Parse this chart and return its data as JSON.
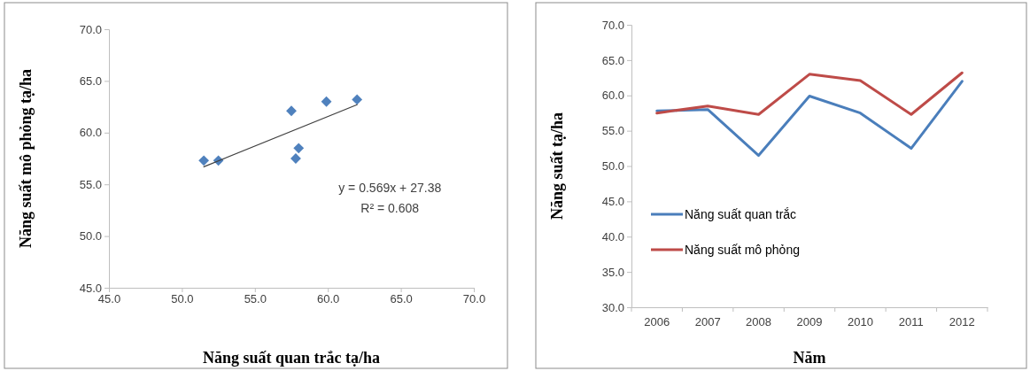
{
  "chart_data": [
    {
      "type": "scatter",
      "xlabel": "Năng suất quan trắc tạ/ha",
      "ylabel": "Năng suất mô phỏng tạ/ha",
      "xlim": [
        45,
        70
      ],
      "xticks": [
        {
          "value": 45,
          "label": "45.0"
        },
        {
          "value": 50,
          "label": "50.0"
        },
        {
          "value": 55,
          "label": "55.0"
        },
        {
          "value": 60,
          "label": "60.0"
        },
        {
          "value": 65,
          "label": "65.0"
        },
        {
          "value": 70,
          "label": "70.0"
        }
      ],
      "ylim": [
        45,
        70
      ],
      "yticks": [
        {
          "value": 45,
          "label": "45.0"
        },
        {
          "value": 50,
          "label": "50.0"
        },
        {
          "value": 55,
          "label": "55.0"
        },
        {
          "value": 60,
          "label": "60.0"
        },
        {
          "value": 65,
          "label": "65.0"
        },
        {
          "value": 70,
          "label": "70.0"
        }
      ],
      "marker": "diamond",
      "legend": false,
      "grid": false,
      "series": [
        {
          "type": "scatter",
          "color": "#4f81bd",
          "x": [
            57.8,
            58.0,
            51.5,
            59.9,
            57.5,
            52.5,
            62.0
          ],
          "values": [
            57.5,
            58.5,
            57.3,
            63.0,
            62.1,
            57.3,
            63.2
          ]
        },
        {
          "type": "line",
          "color": "#404040",
          "marker": "none",
          "x": [
            51.5,
            62.0
          ],
          "values": [
            56.7,
            62.7
          ]
        }
      ],
      "annotations": [
        "y = 0.569x + 27.38",
        "R² = 0.608"
      ]
    },
    {
      "type": "line",
      "xlabel": "Năm",
      "ylabel": "Năng suất tạ/ha",
      "categories": [
        "2006",
        "2007",
        "2008",
        "2009",
        "2010",
        "2011",
        "2012"
      ],
      "ylim": [
        30,
        70
      ],
      "yticks": [
        {
          "value": 30,
          "label": "30.0"
        },
        {
          "value": 35,
          "label": "35.0"
        },
        {
          "value": 40,
          "label": "40.0"
        },
        {
          "value": 45,
          "label": "45.0"
        },
        {
          "value": 50,
          "label": "50.0"
        },
        {
          "value": 55,
          "label": "55.0"
        },
        {
          "value": 60,
          "label": "60.0"
        },
        {
          "value": 65,
          "label": "65.0"
        },
        {
          "value": 70,
          "label": "70.0"
        }
      ],
      "marker": "none",
      "legend": "bottom left",
      "grid": false,
      "series": [
        {
          "name": "Năng suất quan trắc",
          "color": "#4a7ebb",
          "values": [
            57.8,
            58.0,
            51.5,
            59.9,
            57.5,
            52.5,
            62.0
          ]
        },
        {
          "name": "Năng suất mô phỏng",
          "color": "#be4b48",
          "values": [
            57.5,
            58.5,
            57.3,
            63.0,
            62.1,
            57.3,
            63.2
          ]
        }
      ]
    }
  ]
}
